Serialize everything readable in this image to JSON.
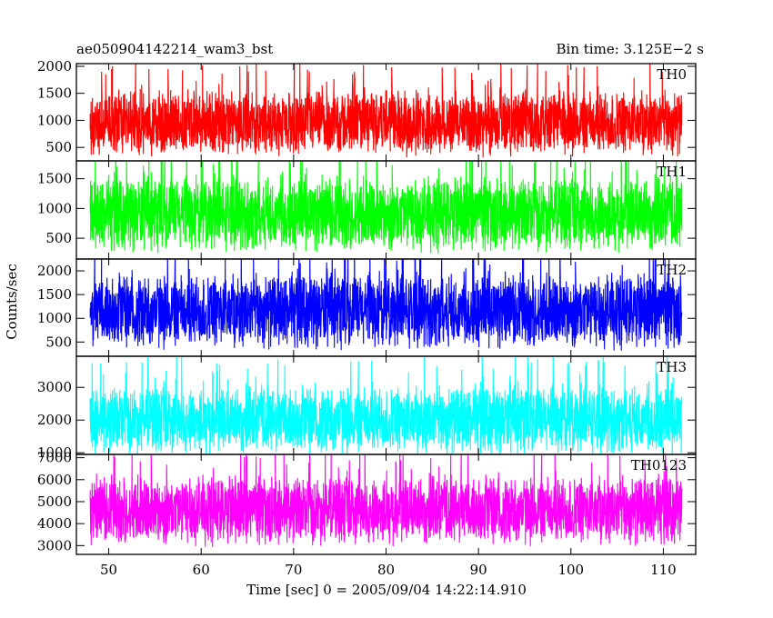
{
  "chart_data": {
    "type": "line",
    "title_left": "ae050904142214_wam3_bst",
    "title_right": "Bin time: 3.125E−2 s",
    "xlabel": "Time [sec] 0 = 2005/09/04 14:22:14.910",
    "ylabel": "Counts/sec",
    "xlim": [
      46.5,
      113.5
    ],
    "data_xlim": [
      48,
      112
    ],
    "x_ticks": [
      50,
      60,
      70,
      80,
      90,
      100,
      110
    ],
    "x_tick_labels": [
      "50",
      "60",
      "70",
      "80",
      "90",
      "100",
      "110"
    ],
    "panels": [
      {
        "name": "TH0",
        "color": "#ff0000",
        "ylim": [
          250,
          2050
        ],
        "y_ticks": [
          500,
          1000,
          1500,
          2000
        ],
        "y_tick_labels": [
          "500",
          "1000",
          "1500",
          "2000"
        ],
        "mean": 950,
        "low": 450,
        "high": 1750
      },
      {
        "name": "TH1",
        "color": "#00ff00",
        "ylim": [
          150,
          1800
        ],
        "y_ticks": [
          500,
          1000,
          1500
        ],
        "y_tick_labels": [
          "500",
          "1000",
          "1500"
        ],
        "mean": 900,
        "low": 300,
        "high": 1650
      },
      {
        "name": "TH2",
        "color": "#0000ff",
        "ylim": [
          200,
          2250
        ],
        "y_ticks": [
          500,
          1000,
          1500,
          2000
        ],
        "y_tick_labels": [
          "500",
          "1000",
          "1500",
          "2000"
        ],
        "mean": 1150,
        "low": 400,
        "high": 2100
      },
      {
        "name": "TH3",
        "color": "#00ffff",
        "ylim": [
          950,
          3950
        ],
        "y_ticks": [
          1000,
          2000,
          3000
        ],
        "y_tick_labels": [
          "1000",
          "2000",
          "3000"
        ],
        "mean": 2000,
        "low": 1250,
        "high": 3500
      },
      {
        "name": "TH0123",
        "color": "#ff00ff",
        "ylim": [
          2600,
          7150
        ],
        "y_ticks": [
          3000,
          4000,
          5000,
          6000,
          7000
        ],
        "y_tick_labels": [
          "3000",
          "4000",
          "5000",
          "6000",
          "7000"
        ],
        "mean": 4600,
        "low": 3300,
        "high": 6700
      }
    ]
  }
}
